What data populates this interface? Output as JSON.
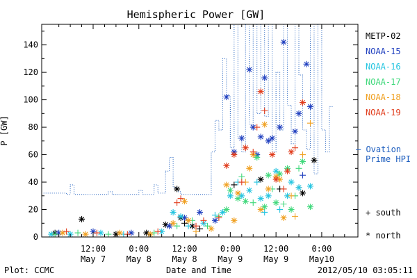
{
  "chart_data": {
    "type": "scatter",
    "title": "Hemispheric Power [GW]",
    "xlabel": "Date and Time",
    "ylabel": "P [GW]",
    "ylim": [
      0,
      155
    ],
    "yticks": [
      0,
      20,
      40,
      60,
      80,
      100,
      120,
      140
    ],
    "x_unit": "hours since 2012/05/07 00:00",
    "xlim": [
      -1.5,
      81.5
    ],
    "xticks": [
      {
        "t": 12,
        "line1": "12:00",
        "line2": "May 7"
      },
      {
        "t": 24,
        "line1": "0:00",
        "line2": "May 8"
      },
      {
        "t": 36,
        "line1": "12:00",
        "line2": "May 8"
      },
      {
        "t": 48,
        "line1": "0:00",
        "line2": "May 9"
      },
      {
        "t": 60,
        "line1": "12:00",
        "line2": "May 9"
      },
      {
        "t": 72,
        "line1": "0:00",
        "line2": "May10"
      }
    ],
    "legend": {
      "placement": "right",
      "satellites": [
        {
          "name": "METP-02",
          "color": "#000000"
        },
        {
          "name": "NOAA-15",
          "color": "#1f3fbf"
        },
        {
          "name": "NOAA-16",
          "color": "#22c4e0"
        },
        {
          "name": "NOAA-17",
          "color": "#3ed87a"
        },
        {
          "name": "NOAA-18",
          "color": "#f0a020"
        },
        {
          "name": "NOAA-19",
          "color": "#e03a1a"
        }
      ],
      "ovation_line1": "— Ovation",
      "ovation_line2": "Prime HPI",
      "ovation_color": "#1f5fbf",
      "south_label": "+ south",
      "north_label": "* north"
    },
    "ovation_hpi": [
      [
        -1,
        32
      ],
      [
        5,
        31
      ],
      [
        6,
        38
      ],
      [
        7,
        31
      ],
      [
        15,
        31
      ],
      [
        16,
        33
      ],
      [
        17,
        31
      ],
      [
        23,
        31
      ],
      [
        24,
        34
      ],
      [
        25,
        31
      ],
      [
        27,
        31
      ],
      [
        28,
        38
      ],
      [
        29,
        32
      ],
      [
        30,
        32
      ],
      [
        31,
        48
      ],
      [
        32,
        58
      ],
      [
        33,
        36
      ],
      [
        34,
        33
      ],
      [
        35,
        31
      ],
      [
        42,
        31
      ],
      [
        43,
        62
      ],
      [
        44,
        85
      ],
      [
        45,
        78
      ],
      [
        46,
        130
      ],
      [
        47,
        103
      ],
      [
        48,
        65
      ],
      [
        49,
        155
      ],
      [
        50,
        72
      ],
      [
        51,
        62
      ],
      [
        52,
        155
      ],
      [
        53,
        82
      ],
      [
        54,
        155
      ],
      [
        55,
        90
      ],
      [
        56,
        155
      ],
      [
        57,
        88
      ],
      [
        58,
        155
      ],
      [
        59,
        62
      ],
      [
        60,
        120
      ],
      [
        61,
        78
      ],
      [
        62,
        155
      ],
      [
        63,
        96
      ],
      [
        64,
        68
      ],
      [
        65,
        155
      ],
      [
        66,
        118
      ],
      [
        67,
        78
      ],
      [
        68,
        64
      ],
      [
        69,
        155
      ],
      [
        70,
        46
      ],
      [
        71,
        155
      ],
      [
        72,
        78
      ],
      [
        73,
        62
      ],
      [
        74,
        95
      ],
      [
        75,
        95
      ]
    ],
    "series": [
      {
        "name": "METP-02",
        "points": [
          [
            2,
            3,
            "n"
          ],
          [
            9,
            13,
            "n"
          ],
          [
            18,
            2,
            "n"
          ],
          [
            26,
            3,
            "n"
          ],
          [
            31,
            9,
            "n"
          ],
          [
            34,
            35,
            "n"
          ],
          [
            35,
            14,
            "n"
          ],
          [
            36,
            10,
            "s"
          ],
          [
            38,
            8,
            "n"
          ],
          [
            40,
            6,
            "s"
          ],
          [
            49,
            38,
            "s"
          ],
          [
            56,
            42,
            "n"
          ],
          [
            61,
            35,
            "s"
          ],
          [
            66,
            36,
            "s"
          ],
          [
            67,
            32,
            "n"
          ],
          [
            70,
            56,
            "n"
          ]
        ]
      },
      {
        "name": "NOAA-15",
        "points": [
          [
            3,
            3,
            "n"
          ],
          [
            12,
            4,
            "n"
          ],
          [
            22,
            3,
            "n"
          ],
          [
            32,
            8,
            "n"
          ],
          [
            36,
            14,
            "n"
          ],
          [
            40,
            18,
            "n"
          ],
          [
            44,
            12,
            "n"
          ],
          [
            47,
            102,
            "n"
          ],
          [
            49,
            62,
            "n"
          ],
          [
            51,
            72,
            "n"
          ],
          [
            53,
            122,
            "n"
          ],
          [
            54,
            80,
            "n"
          ],
          [
            55,
            60,
            "n"
          ],
          [
            56,
            73,
            "n"
          ],
          [
            57,
            116,
            "n"
          ],
          [
            58,
            70,
            "n"
          ],
          [
            59,
            72,
            "n"
          ],
          [
            61,
            80,
            "n"
          ],
          [
            62,
            142,
            "n"
          ],
          [
            65,
            77,
            "n"
          ],
          [
            66,
            90,
            "n"
          ],
          [
            67,
            45,
            "s"
          ],
          [
            68,
            126,
            "n"
          ],
          [
            69,
            95,
            "n"
          ]
        ]
      },
      {
        "name": "NOAA-16",
        "points": [
          [
            1,
            2,
            "n"
          ],
          [
            6,
            2,
            "n"
          ],
          [
            14,
            3,
            "n"
          ],
          [
            20,
            2,
            "s"
          ],
          [
            30,
            4,
            "n"
          ],
          [
            33,
            18,
            "n"
          ],
          [
            35,
            15,
            "n"
          ],
          [
            37,
            8,
            "s"
          ],
          [
            41,
            10,
            "n"
          ],
          [
            44,
            16,
            "s"
          ],
          [
            46,
            18,
            "n"
          ],
          [
            48,
            30,
            "n"
          ],
          [
            50,
            40,
            "s"
          ],
          [
            51,
            30,
            "n"
          ],
          [
            53,
            34,
            "n"
          ],
          [
            55,
            40,
            "s"
          ],
          [
            56,
            28,
            "n"
          ],
          [
            57,
            18,
            "s"
          ],
          [
            58,
            30,
            "n"
          ],
          [
            60,
            48,
            "n"
          ],
          [
            61,
            20,
            "s"
          ],
          [
            63,
            30,
            "n"
          ],
          [
            64,
            40,
            "n"
          ],
          [
            66,
            36,
            "n"
          ],
          [
            69,
            37,
            "n"
          ]
        ]
      },
      {
        "name": "NOAA-17",
        "points": [
          [
            2,
            2,
            "s"
          ],
          [
            8,
            3,
            "s"
          ],
          [
            16,
            2,
            "s"
          ],
          [
            28,
            3,
            "s"
          ],
          [
            34,
            8,
            "s"
          ],
          [
            38,
            12,
            "s"
          ],
          [
            42,
            8,
            "s"
          ],
          [
            45,
            15,
            "s"
          ],
          [
            47,
            20,
            "n"
          ],
          [
            48,
            34,
            "n"
          ],
          [
            50,
            28,
            "n"
          ],
          [
            51,
            44,
            "s"
          ],
          [
            52,
            26,
            "n"
          ],
          [
            54,
            25,
            "s"
          ],
          [
            55,
            58,
            "n"
          ],
          [
            57,
            22,
            "n"
          ],
          [
            58,
            45,
            "n"
          ],
          [
            59,
            35,
            "s"
          ],
          [
            60,
            25,
            "n"
          ],
          [
            61,
            46,
            "n"
          ],
          [
            62,
            24,
            "s"
          ],
          [
            63,
            50,
            "n"
          ],
          [
            64,
            20,
            "n"
          ],
          [
            65,
            30,
            "s"
          ],
          [
            66,
            50,
            "s"
          ],
          [
            67,
            55,
            "n"
          ],
          [
            69,
            22,
            "n"
          ]
        ]
      },
      {
        "name": "NOAA-18",
        "points": [
          [
            4,
            3,
            "n"
          ],
          [
            10,
            2,
            "n"
          ],
          [
            19,
            3,
            "n"
          ],
          [
            27,
            2,
            "n"
          ],
          [
            33,
            10,
            "n"
          ],
          [
            36,
            26,
            "n"
          ],
          [
            37,
            12,
            "n"
          ],
          [
            39,
            4,
            "s"
          ],
          [
            43,
            6,
            "n"
          ],
          [
            47,
            38,
            "n"
          ],
          [
            49,
            12,
            "n"
          ],
          [
            50,
            32,
            "n"
          ],
          [
            52,
            40,
            "s"
          ],
          [
            53,
            50,
            "n"
          ],
          [
            54,
            60,
            "n"
          ],
          [
            56,
            20,
            "n"
          ],
          [
            57,
            82,
            "n"
          ],
          [
            58,
            35,
            "n"
          ],
          [
            60,
            44,
            "n"
          ],
          [
            61,
            42,
            "n"
          ],
          [
            62,
            14,
            "n"
          ],
          [
            64,
            30,
            "s"
          ],
          [
            65,
            15,
            "s"
          ],
          [
            67,
            60,
            "s"
          ],
          [
            69,
            83,
            "s"
          ]
        ]
      },
      {
        "name": "NOAA-19",
        "points": [
          [
            5,
            4,
            "s"
          ],
          [
            13,
            3,
            "s"
          ],
          [
            21,
            2,
            "s"
          ],
          [
            29,
            4,
            "s"
          ],
          [
            34,
            25,
            "s"
          ],
          [
            35,
            28,
            "s"
          ],
          [
            39,
            8,
            "s"
          ],
          [
            41,
            12,
            "s"
          ],
          [
            45,
            14,
            "s"
          ],
          [
            47,
            52,
            "n"
          ],
          [
            49,
            60,
            "n"
          ],
          [
            51,
            40,
            "s"
          ],
          [
            52,
            65,
            "n"
          ],
          [
            54,
            62,
            "s"
          ],
          [
            55,
            80,
            "s"
          ],
          [
            56,
            106,
            "n"
          ],
          [
            57,
            92,
            "s"
          ],
          [
            59,
            60,
            "n"
          ],
          [
            60,
            42,
            "n"
          ],
          [
            62,
            35,
            "s"
          ],
          [
            63,
            48,
            "n"
          ],
          [
            64,
            62,
            "n"
          ],
          [
            65,
            65,
            "s"
          ],
          [
            67,
            98,
            "n"
          ]
        ]
      }
    ]
  },
  "footer": {
    "plot_credit": "Plot: CCMC",
    "timestamp": "2012/05/10 03:05:11"
  }
}
